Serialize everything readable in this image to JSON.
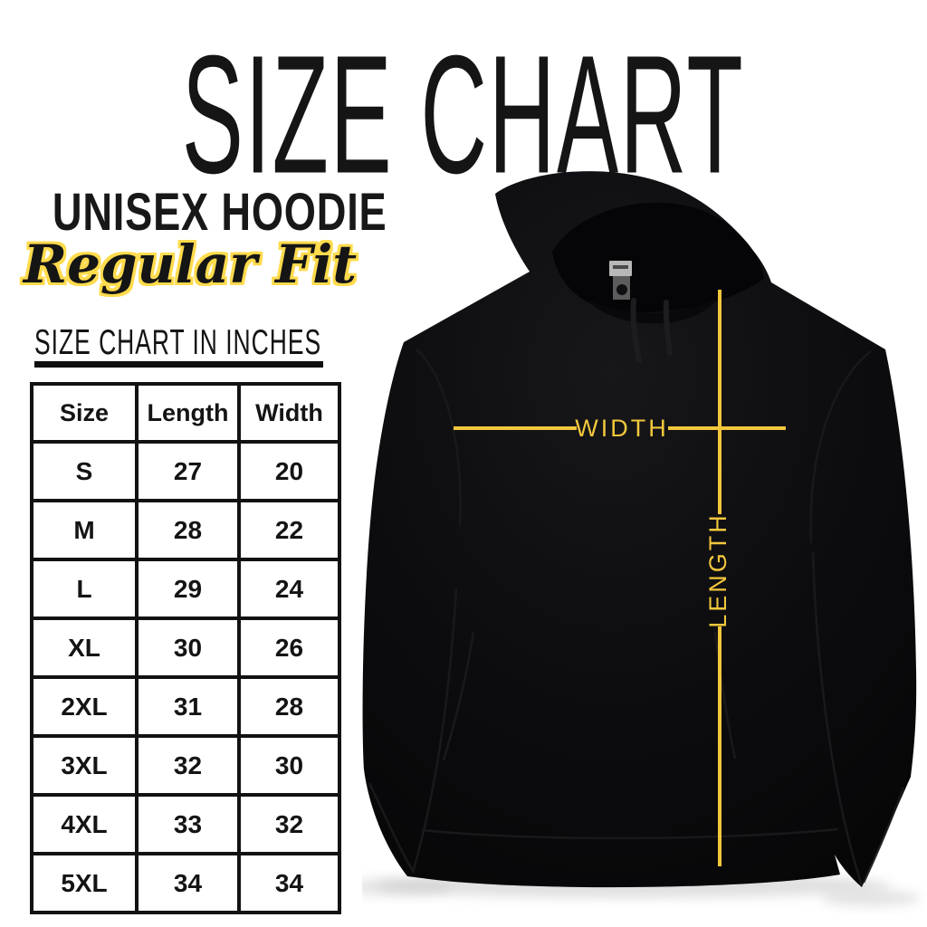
{
  "header": {
    "title": "SIZE CHART",
    "product": "UNISEX HOODIE",
    "fit": "Regular Fit"
  },
  "table": {
    "heading": "SIZE CHART IN INCHES",
    "columns": [
      "Size",
      "Length",
      "Width"
    ],
    "rows": [
      [
        "S",
        "27",
        "20"
      ],
      [
        "M",
        "28",
        "22"
      ],
      [
        "L",
        "29",
        "24"
      ],
      [
        "XL",
        "30",
        "26"
      ],
      [
        "2XL",
        "31",
        "28"
      ],
      [
        "3XL",
        "32",
        "30"
      ],
      [
        "4XL",
        "33",
        "32"
      ],
      [
        "5XL",
        "34",
        "34"
      ]
    ]
  },
  "diagram": {
    "width_label": "WIDTH",
    "length_label": "LENGTH"
  },
  "colors": {
    "measure_line": "#F2C73C",
    "script_outline": "#FFDB4D",
    "ink": "#141414",
    "hoodie_black": "#0c0c0e",
    "background": "#ffffff"
  },
  "chart_data": {
    "type": "table",
    "title": "SIZE CHART",
    "subtitle": "UNISEX HOODIE - Regular Fit",
    "units": "inches",
    "columns": [
      "Size",
      "Length",
      "Width"
    ],
    "rows": [
      [
        "S",
        27,
        20
      ],
      [
        "M",
        28,
        22
      ],
      [
        "L",
        29,
        24
      ],
      [
        "XL",
        30,
        26
      ],
      [
        "2XL",
        31,
        28
      ],
      [
        "3XL",
        32,
        30
      ],
      [
        "4XL",
        33,
        32
      ],
      [
        "5XL",
        34,
        34
      ]
    ]
  }
}
